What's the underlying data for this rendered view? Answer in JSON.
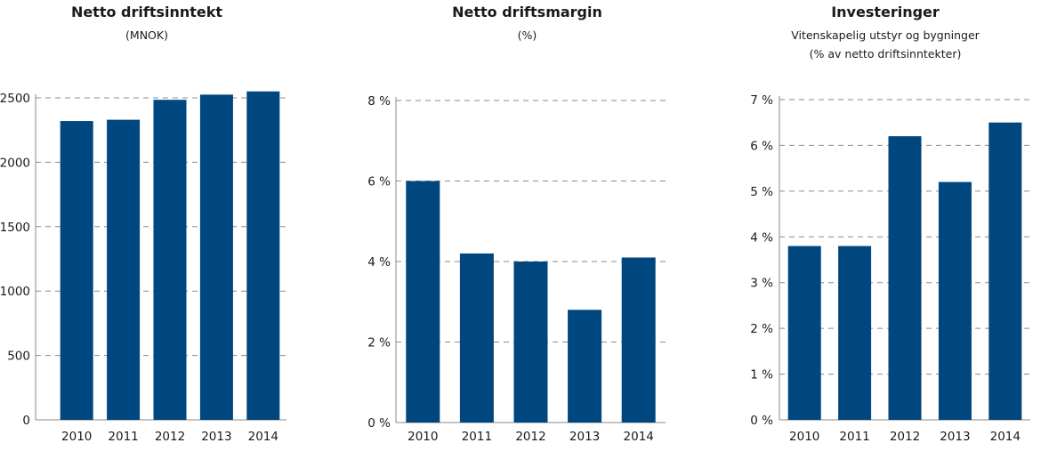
{
  "bar_color": "#00467f",
  "chart_data": [
    {
      "type": "bar",
      "title": "Netto driftsinntekt",
      "subtitle": [
        "(MNOK)"
      ],
      "categories": [
        "2010",
        "2011",
        "2012",
        "2013",
        "2014"
      ],
      "values": [
        2320,
        2330,
        2485,
        2525,
        2570
      ],
      "ylim": [
        0,
        2500
      ],
      "yticks": [
        0,
        500,
        1000,
        1500,
        2000,
        2500
      ],
      "ytick_labels": [
        "0",
        "500",
        "1000",
        "1500",
        "2000",
        "2500"
      ],
      "grid": true
    },
    {
      "type": "bar",
      "title": "Netto driftsmargin",
      "subtitle": [
        "(%)"
      ],
      "categories": [
        "2010",
        "2011",
        "2012",
        "2013",
        "2014"
      ],
      "values": [
        6.0,
        4.2,
        4.0,
        2.8,
        4.1
      ],
      "ylim": [
        0,
        8
      ],
      "yticks": [
        0,
        2,
        4,
        6,
        8
      ],
      "ytick_labels": [
        "0 %",
        "2 %",
        "4 %",
        "6 %",
        "8 %"
      ],
      "grid": true
    },
    {
      "type": "bar",
      "title": "Investeringer",
      "subtitle": [
        "Vitenskapelig utstyr og bygninger",
        "(% av netto driftsinntekter)"
      ],
      "categories": [
        "2010",
        "2011",
        "2012",
        "2013",
        "2014"
      ],
      "values": [
        3.8,
        3.8,
        6.2,
        5.2,
        6.5
      ],
      "ylim": [
        0,
        7
      ],
      "yticks": [
        0,
        1,
        2,
        3,
        4,
        5,
        6,
        7
      ],
      "ytick_labels": [
        "0 %",
        "1 %",
        "2 %",
        "3 %",
        "4 %",
        "5 %",
        "6 %",
        "7 %"
      ],
      "grid": true
    }
  ]
}
